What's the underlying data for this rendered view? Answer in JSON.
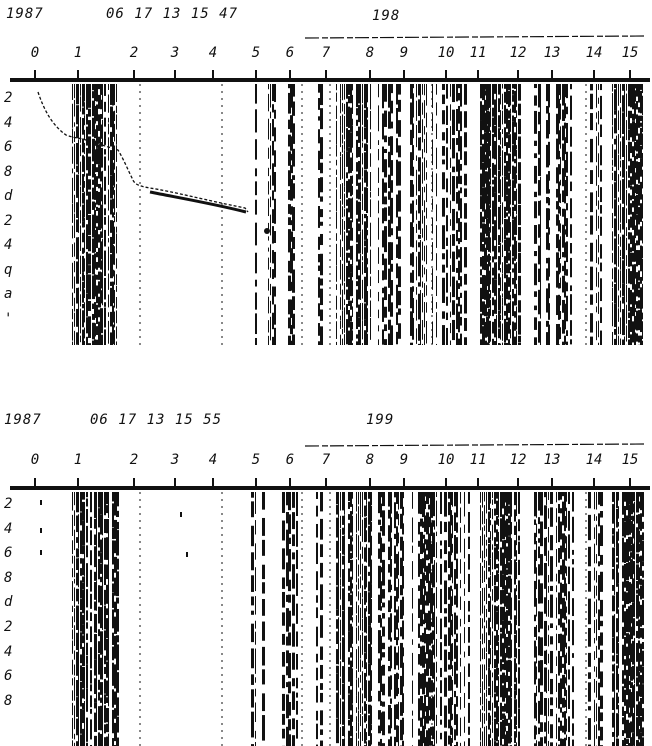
{
  "top": {
    "header_year": "1987",
    "header_codes": "06 17 13 15 47",
    "header_number": "198",
    "column_labels": [
      "0",
      "1",
      "2",
      "3",
      "4",
      "5",
      "6",
      "7",
      "8",
      "9",
      "10",
      "11",
      "12",
      "13",
      "14",
      "15"
    ],
    "row_labels": [
      "2",
      "4",
      "6",
      "8",
      "d",
      "2",
      "4",
      "q",
      "a",
      "'"
    ]
  },
  "bottom": {
    "header_year": "1987",
    "header_codes": "06 17 13 15 55",
    "header_number": "199",
    "column_labels": [
      "0",
      "1",
      "2",
      "3",
      "4",
      "5",
      "6",
      "7",
      "8",
      "9",
      "10",
      "11",
      "12",
      "13",
      "14",
      "15"
    ],
    "row_labels": [
      "2",
      "4",
      "6",
      "8",
      "d",
      "2",
      "4",
      "6",
      "8"
    ]
  },
  "ink_color": "#111111"
}
